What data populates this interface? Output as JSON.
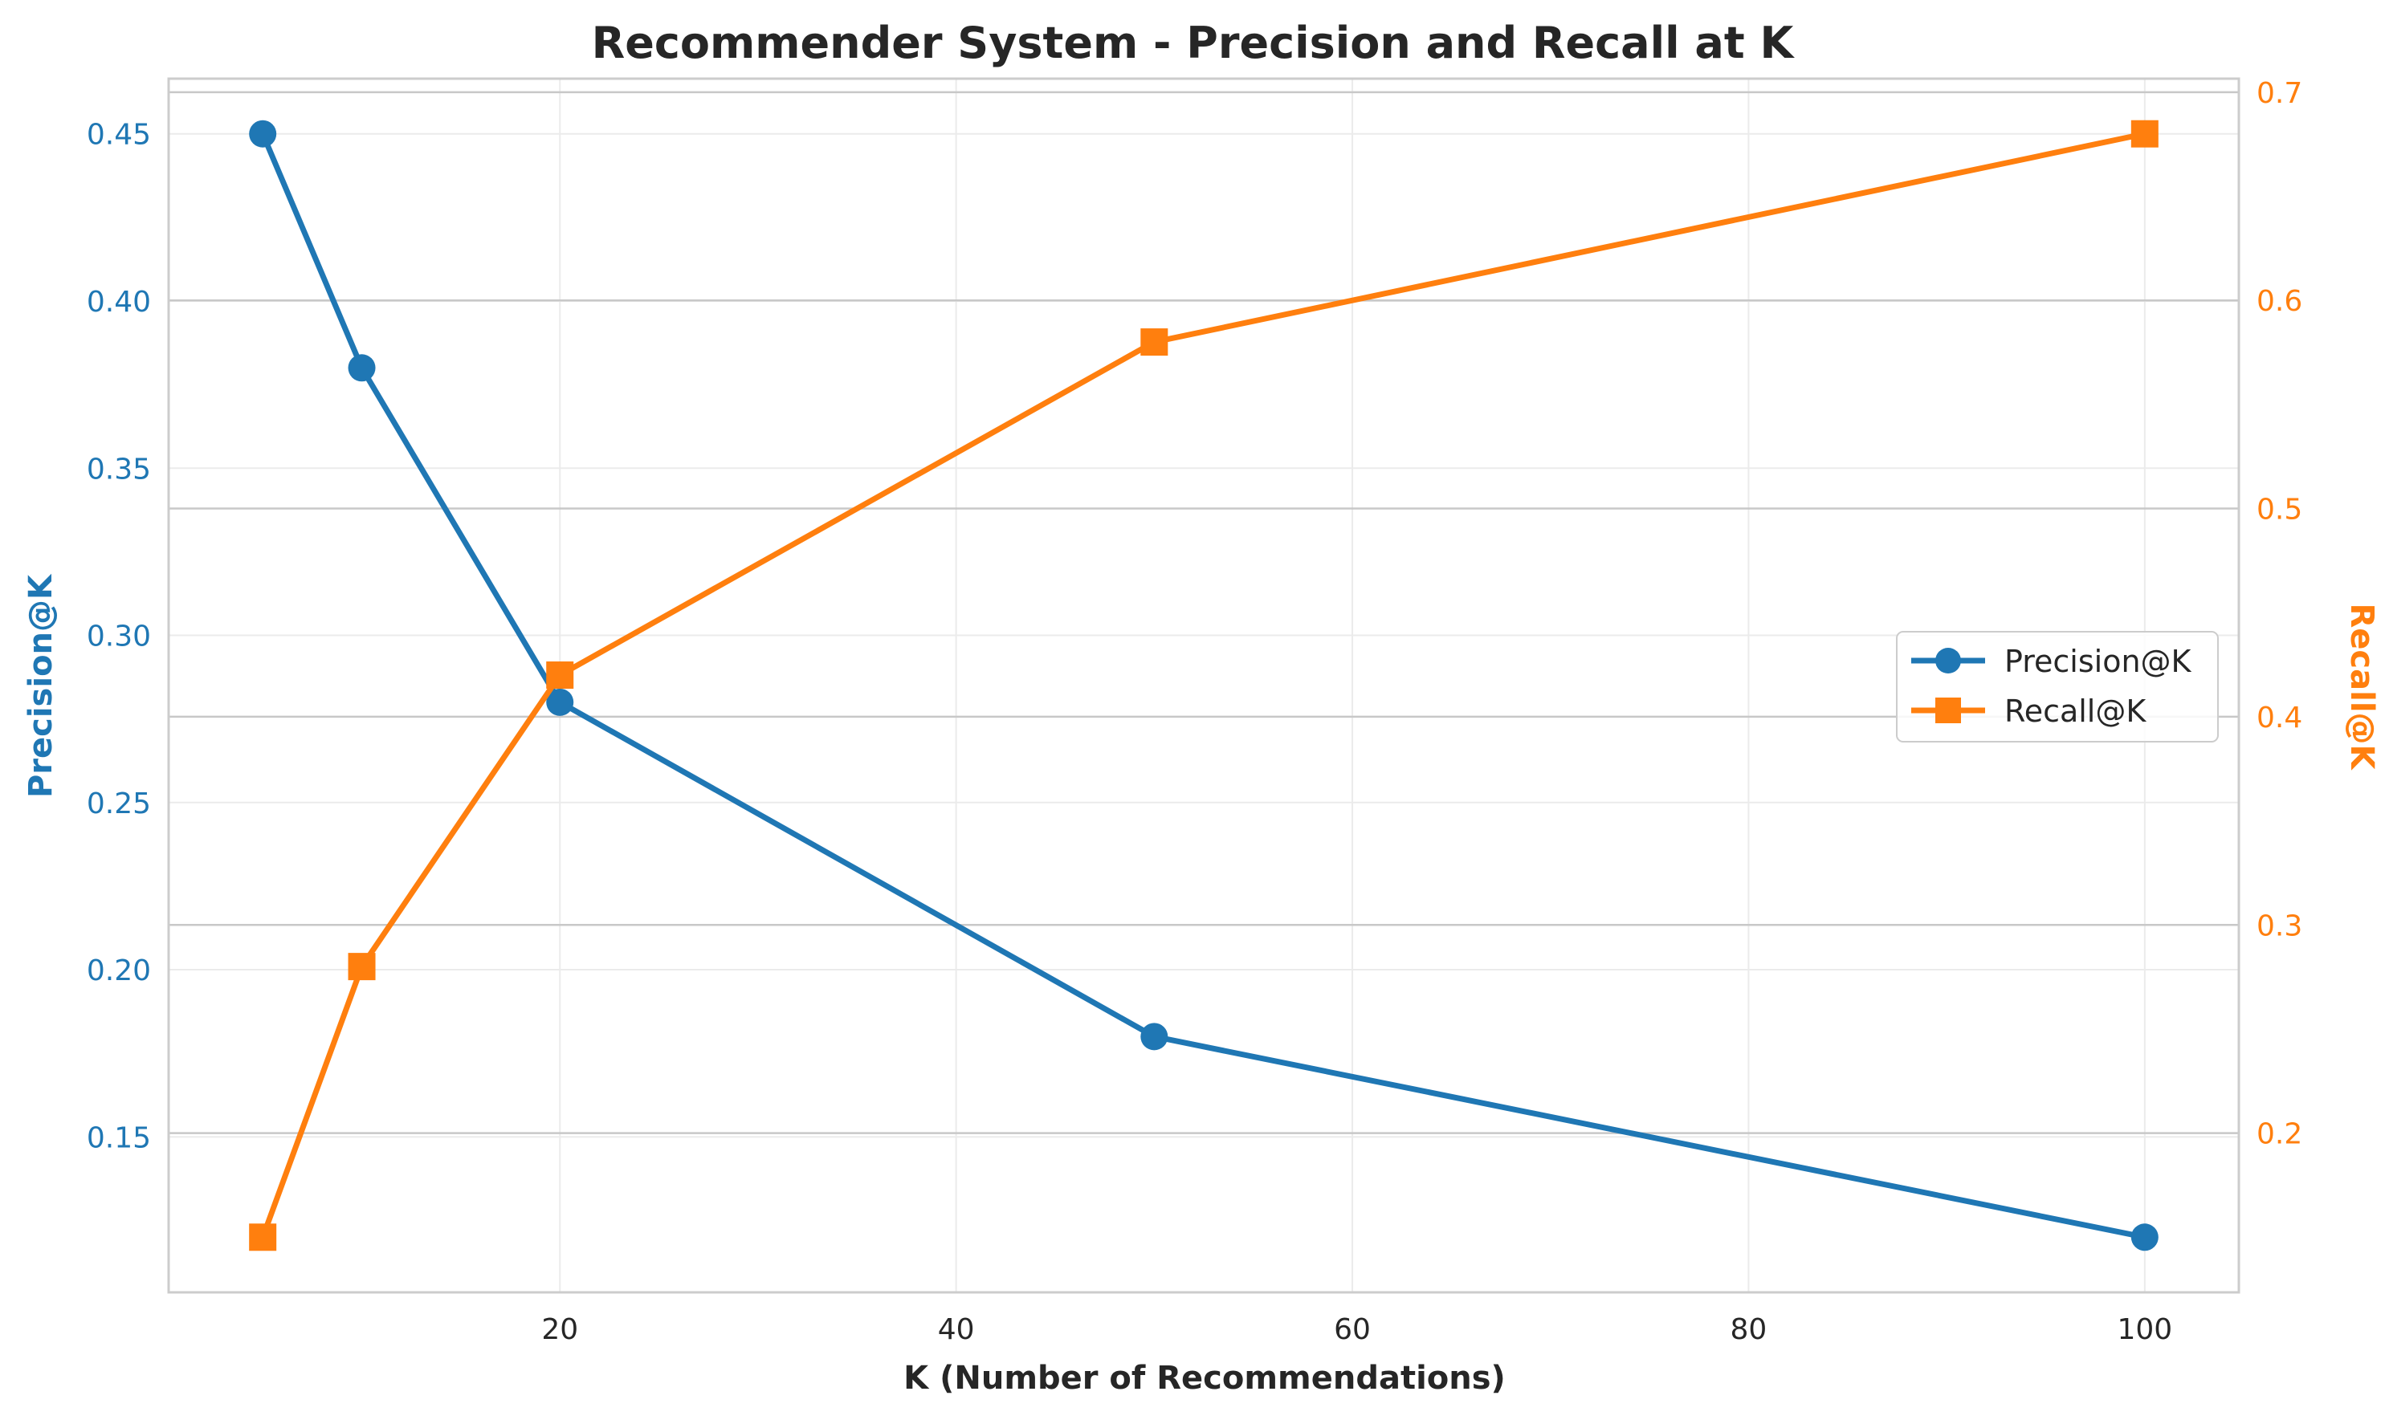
{
  "chart_data": {
    "type": "line",
    "title": "Recommender System - Precision and Recall at K",
    "xlabel": "K (Number of Recommendations)",
    "ylabel_left": "Precision@K",
    "ylabel_right": "Recall@K",
    "x": [
      5,
      10,
      20,
      50,
      100
    ],
    "x_ticks": [
      20,
      40,
      60,
      80,
      100
    ],
    "x_tick_labels": [
      "20",
      "40",
      "60",
      "80",
      "100"
    ],
    "xlim": [
      0.25,
      104.75
    ],
    "ylim_left": [
      0.1035,
      0.4665
    ],
    "ylim_right": [
      0.1235,
      0.7065
    ],
    "y_ticks_left": [
      0.15,
      0.2,
      0.25,
      0.3,
      0.35,
      0.4,
      0.45
    ],
    "y_tick_labels_left": [
      "0.15",
      "0.20",
      "0.25",
      "0.30",
      "0.35",
      "0.40",
      "0.45"
    ],
    "y_ticks_right": [
      0.2,
      0.3,
      0.4,
      0.5,
      0.6,
      0.7
    ],
    "y_tick_labels_right": [
      "0.2",
      "0.3",
      "0.4",
      "0.5",
      "0.6",
      "0.7"
    ],
    "grid": true,
    "legend_position": "center-right",
    "series": [
      {
        "name": "Precision@K",
        "axis": "left",
        "marker": "circle",
        "color": "#1f77b4",
        "values": [
          0.45,
          0.38,
          0.28,
          0.18,
          0.12
        ]
      },
      {
        "name": "Recall@K",
        "axis": "right",
        "marker": "square",
        "color": "#ff7f0e",
        "values": [
          0.15,
          0.28,
          0.42,
          0.58,
          0.68
        ]
      }
    ]
  }
}
